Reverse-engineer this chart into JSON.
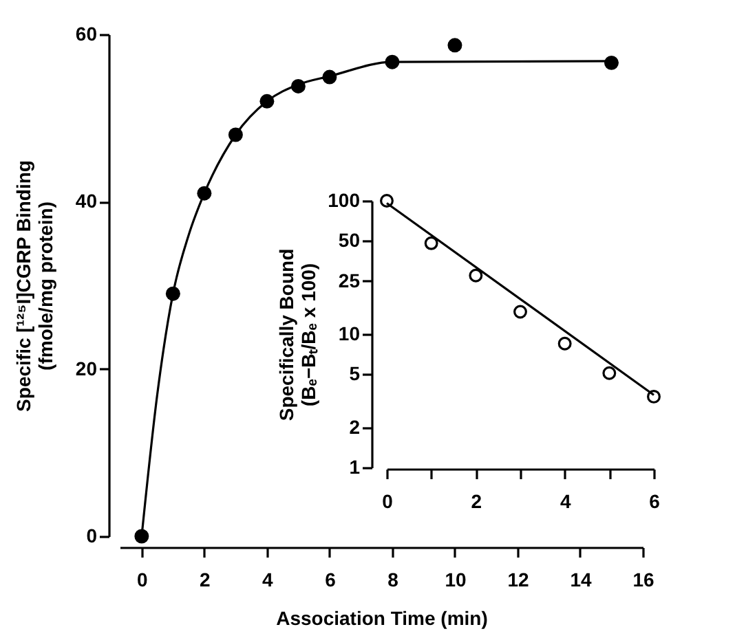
{
  "chart_data": [
    {
      "type": "scatter",
      "xlabel": "Association Time (min)",
      "ylabel": "Specific [¹²⁵I]CGRP Binding\n(fmole/mg protein)",
      "xlim": [
        -0.7,
        16
      ],
      "xticks": [
        0,
        2,
        4,
        6,
        8,
        10,
        12,
        14,
        16
      ],
      "ylim": [
        0,
        60
      ],
      "yticks": [
        0,
        20,
        40,
        60
      ],
      "grid": false,
      "series": [
        {
          "color": "#000000",
          "marker": "circle",
          "x": [
            0,
            1,
            2,
            3,
            4,
            5,
            6,
            8,
            10,
            15
          ],
          "values": [
            0,
            29,
            41,
            48,
            52,
            53.8,
            54.9,
            56.7,
            58.7,
            56.6
          ]
        },
        {
          "type": "line",
          "color": "#000000",
          "marker": "none",
          "x": [
            0,
            0.5,
            1,
            1.5,
            2,
            3,
            4,
            5,
            6,
            8,
            15
          ],
          "values": [
            0,
            17,
            29,
            36,
            41,
            48,
            52,
            54,
            55,
            56.7,
            56.8
          ]
        }
      ]
    },
    {
      "type": "scatter",
      "ylabel": "Specifically Bound\n(Bₑ−Bₜ/Bₑ x 100)",
      "xlim": [
        0,
        6
      ],
      "xticks": [
        0,
        {
          "value": 1,
          "label": null
        },
        2,
        {
          "value": 3,
          "label": null
        },
        4,
        {
          "value": 5,
          "label": null
        },
        6
      ],
      "ylim": [
        1,
        100
      ],
      "yticks": [
        1,
        2,
        5,
        10,
        25,
        50,
        100
      ],
      "log": true,
      "grid": false,
      "series": [
        {
          "color": "#000000",
          "marker": "circle",
          "x": [
            0,
            1,
            2,
            3,
            4,
            5,
            6
          ],
          "values": [
            100,
            48,
            27.5,
            14.7,
            8.5,
            5.1,
            3.4
          ]
        },
        {
          "type": "line",
          "color": "#000000",
          "marker": "none",
          "x": [
            0,
            6
          ],
          "values": [
            96,
            3.5
          ]
        }
      ]
    }
  ]
}
